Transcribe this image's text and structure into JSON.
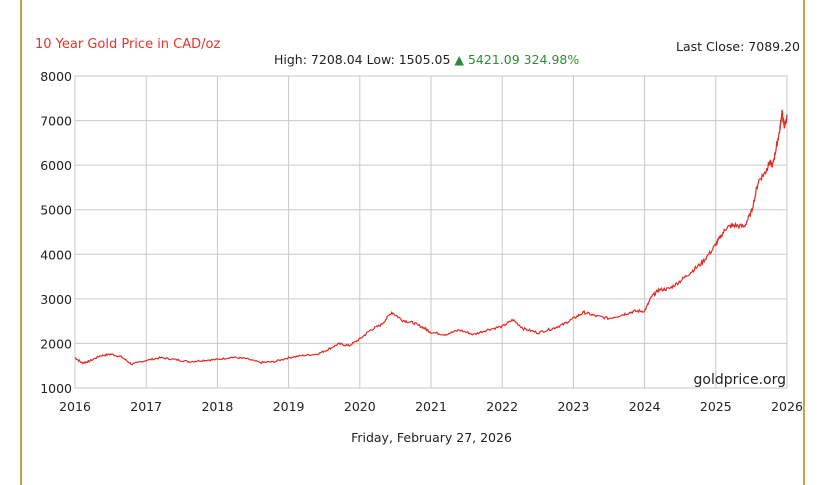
{
  "header": {
    "title": "10 Year Gold Price in CAD/oz",
    "high_label": "High: 7208.04",
    "low_label": "Low: 1505.05",
    "change": "▲ 5421.09 324.98%",
    "last_close": "Last Close: 7089.20"
  },
  "footer": {
    "date": "Friday, February 27, 2026",
    "watermark": "goldprice.org"
  },
  "colors": {
    "line": "#e02a22",
    "title": "#e8332b",
    "up": "#2e8b3a",
    "frame": "#c8a24a",
    "grid": "#c9c9c9"
  },
  "chart_data": {
    "type": "line",
    "title": "10 Year Gold Price in CAD/oz",
    "xlabel": "",
    "ylabel": "",
    "xlim": [
      2016,
      2026
    ],
    "ylim": [
      1000,
      8000
    ],
    "x_ticks": [
      "2016",
      "2017",
      "2018",
      "2019",
      "2020",
      "2021",
      "2022",
      "2023",
      "2024",
      "2025",
      "2026"
    ],
    "y_ticks": [
      "1000",
      "2000",
      "3000",
      "4000",
      "5000",
      "6000",
      "7000",
      "8000"
    ],
    "grid": true,
    "legend": "none",
    "series": [
      {
        "x": [
          2016.0,
          2016.1,
          2016.2,
          2016.35,
          2016.5,
          2016.65,
          2016.8,
          2017.0,
          2017.2,
          2017.4,
          2017.6,
          2017.8,
          2018.0,
          2018.2,
          2018.4,
          2018.6,
          2018.8,
          2019.0,
          2019.2,
          2019.4,
          2019.55,
          2019.7,
          2019.85,
          2020.0,
          2020.15,
          2020.3,
          2020.45,
          2020.6,
          2020.75,
          2020.9,
          2021.0,
          2021.2,
          2021.4,
          2021.6,
          2021.8,
          2022.0,
          2022.15,
          2022.3,
          2022.5,
          2022.7,
          2022.85,
          2023.0,
          2023.15,
          2023.3,
          2023.5,
          2023.7,
          2023.85,
          2024.0,
          2024.1,
          2024.2,
          2024.35,
          2024.5,
          2024.65,
          2024.8,
          2024.95,
          2025.05,
          2025.15,
          2025.25,
          2025.4,
          2025.5,
          2025.6,
          2025.7,
          2025.75,
          2025.8,
          2025.85,
          2025.9,
          2025.93,
          2025.96,
          2026.0
        ],
        "y": [
          1680,
          1560,
          1600,
          1720,
          1760,
          1700,
          1530,
          1620,
          1680,
          1640,
          1590,
          1620,
          1640,
          1690,
          1660,
          1570,
          1590,
          1680,
          1730,
          1760,
          1860,
          1990,
          1950,
          2100,
          2300,
          2420,
          2700,
          2520,
          2460,
          2350,
          2250,
          2200,
          2300,
          2200,
          2310,
          2380,
          2530,
          2330,
          2240,
          2330,
          2420,
          2560,
          2700,
          2620,
          2560,
          2650,
          2720,
          2730,
          3050,
          3200,
          3230,
          3400,
          3600,
          3800,
          4100,
          4350,
          4600,
          4650,
          4620,
          4950,
          5650,
          5850,
          6050,
          6000,
          6400,
          6800,
          7200,
          6850,
          7089
        ]
      }
    ]
  }
}
